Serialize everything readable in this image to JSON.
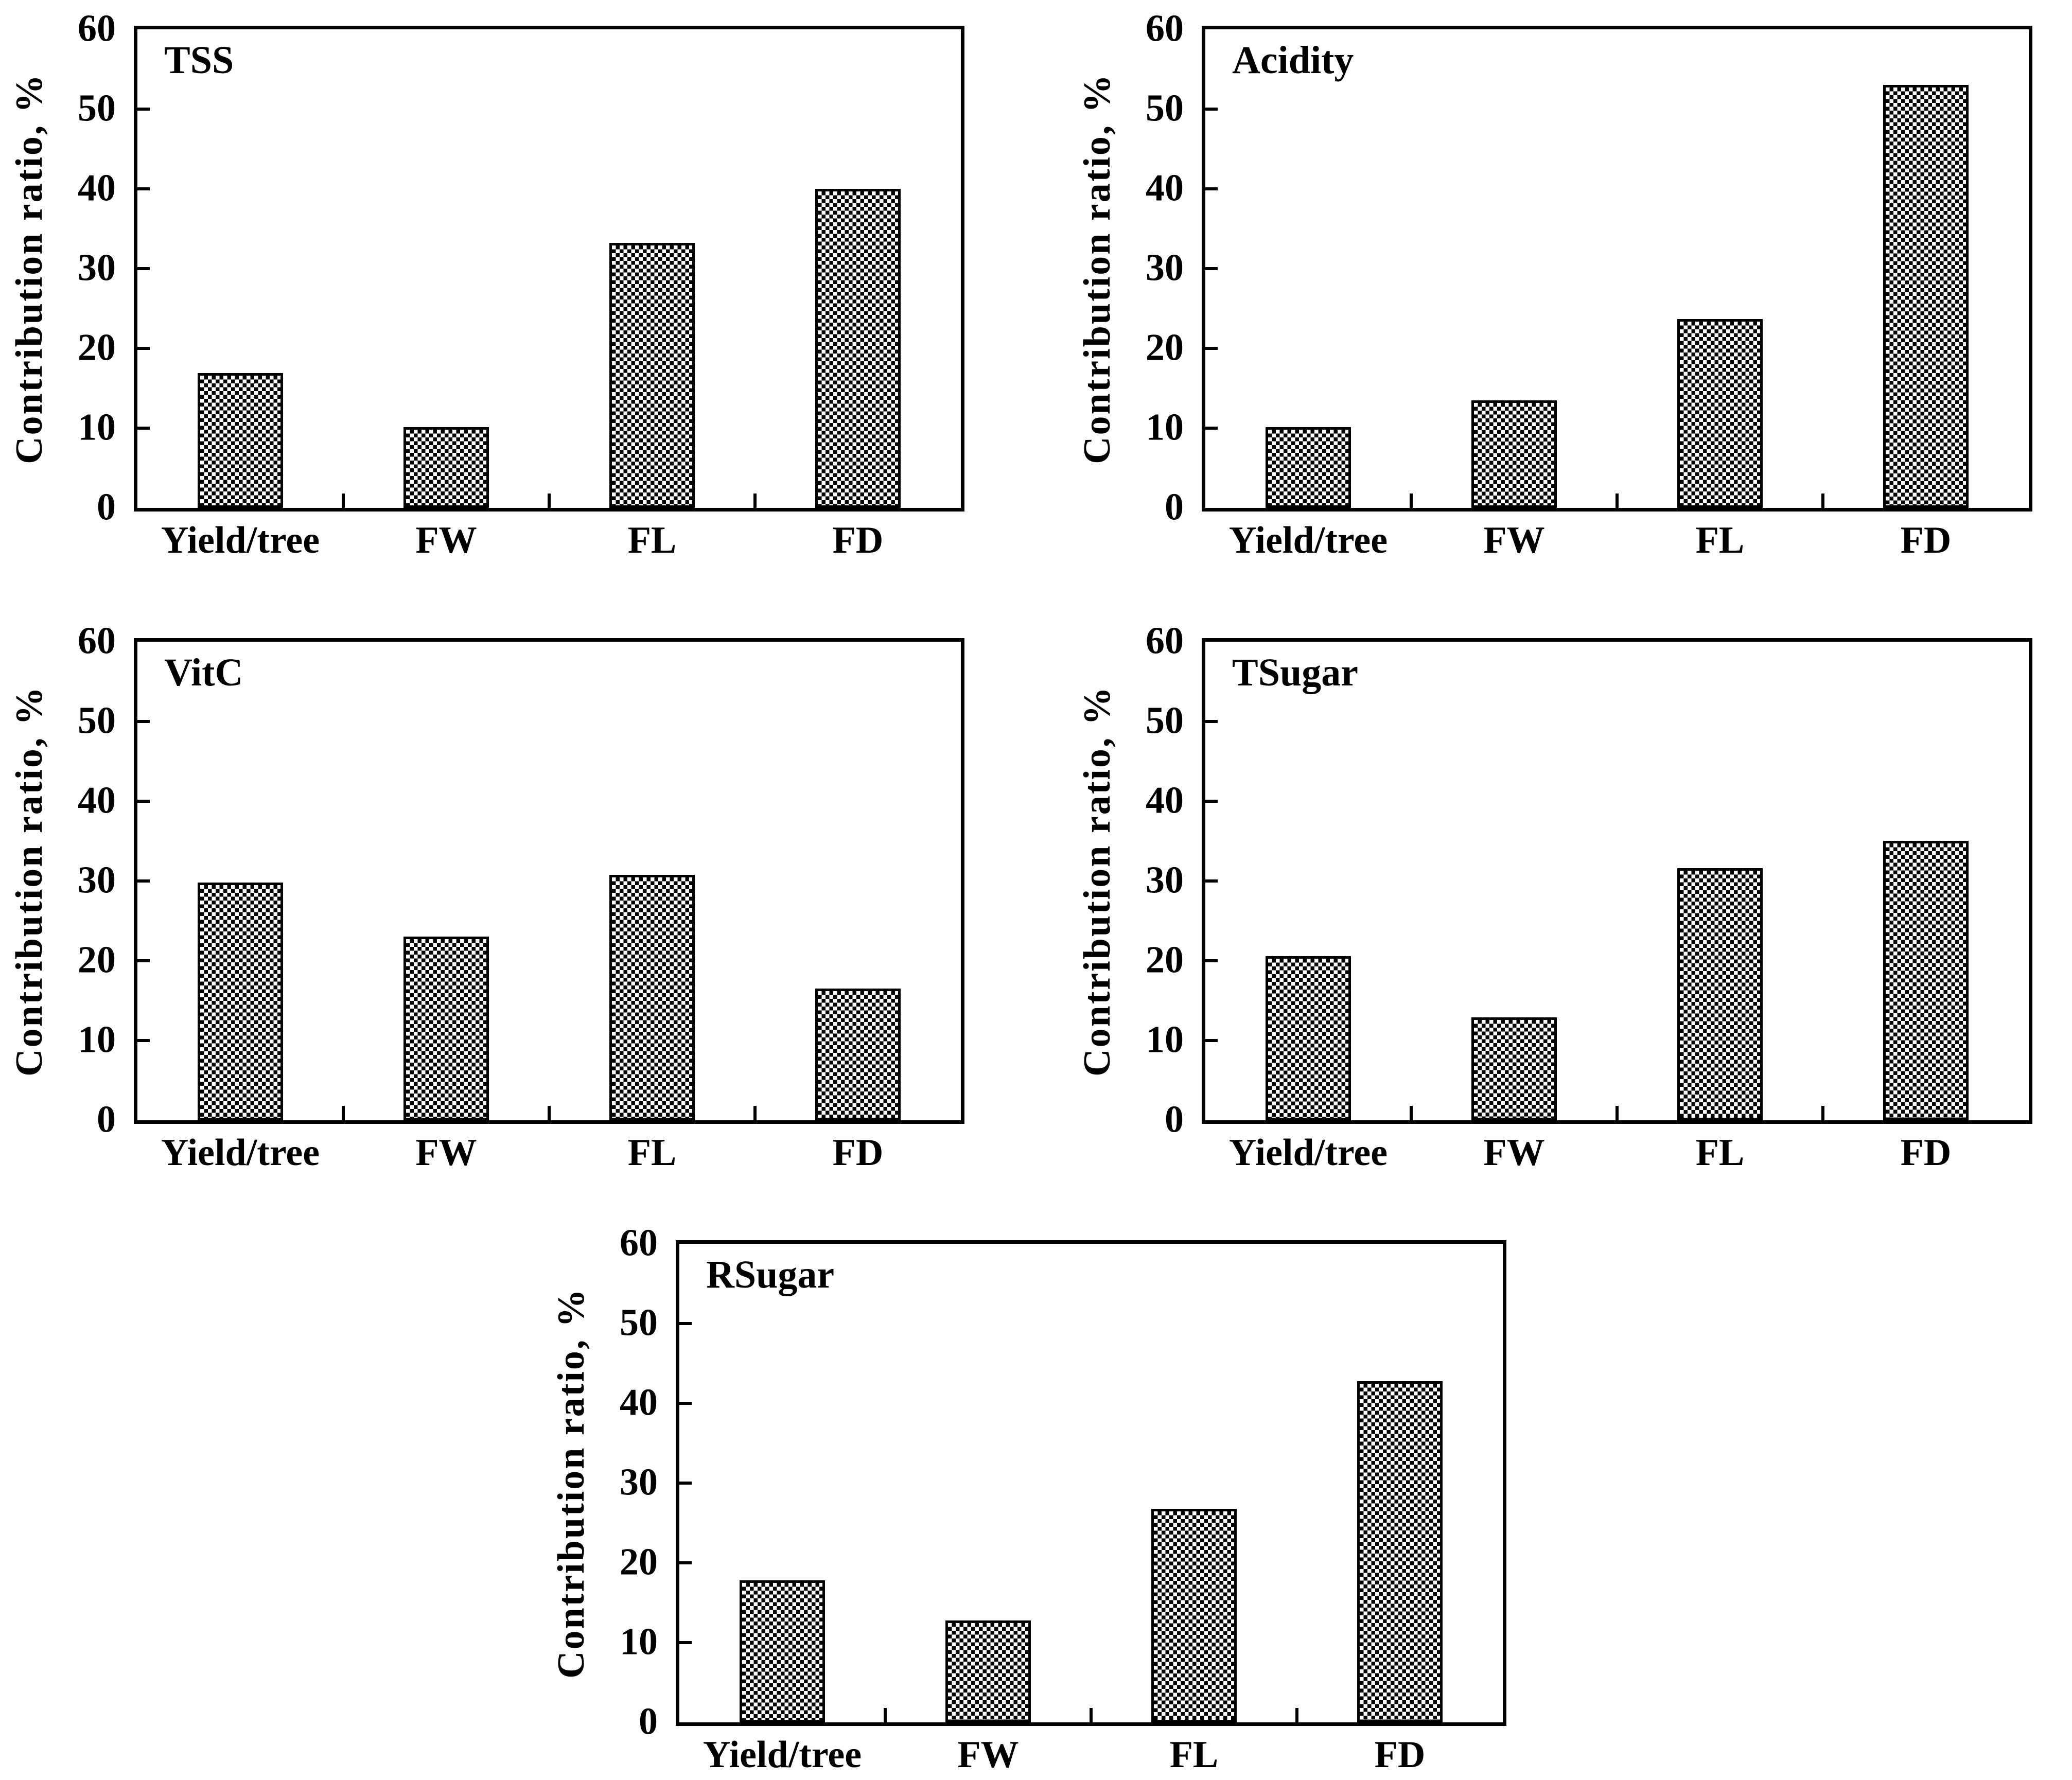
{
  "figure": {
    "background": "#ffffff",
    "ylabel": "Contribution ratio, %",
    "categories": [
      "Yield/tree",
      "FW",
      "FL",
      "FD"
    ],
    "yticks": [
      0,
      10,
      20,
      30,
      40,
      50,
      60
    ],
    "ylim": [
      0,
      60
    ]
  },
  "chart_data": [
    {
      "type": "bar",
      "title": "TSS",
      "xlabel": "",
      "ylabel": "Contribution ratio, %",
      "categories": [
        "Yield/tree",
        "FW",
        "FL",
        "FD"
      ],
      "values": [
        16.9,
        10.1,
        33.2,
        40.0
      ],
      "ylim": [
        0,
        60
      ],
      "yticks": [
        0,
        10,
        20,
        30,
        40,
        50,
        60
      ],
      "grid": false,
      "legend": "none"
    },
    {
      "type": "bar",
      "title": "Acidity",
      "xlabel": "",
      "ylabel": "Contribution ratio, %",
      "categories": [
        "Yield/tree",
        "FW",
        "FL",
        "FD"
      ],
      "values": [
        10.1,
        13.5,
        23.7,
        53.0
      ],
      "ylim": [
        0,
        60
      ],
      "yticks": [
        0,
        10,
        20,
        30,
        40,
        50,
        60
      ],
      "grid": false,
      "legend": "none"
    },
    {
      "type": "bar",
      "title": "VitC",
      "xlabel": "",
      "ylabel": "Contribution ratio, %",
      "categories": [
        "Yield/tree",
        "FW",
        "FL",
        "FD"
      ],
      "values": [
        29.8,
        23.0,
        30.8,
        16.5
      ],
      "ylim": [
        0,
        60
      ],
      "yticks": [
        0,
        10,
        20,
        30,
        40,
        50,
        60
      ],
      "grid": false,
      "legend": "none"
    },
    {
      "type": "bar",
      "title": "TSugar",
      "xlabel": "",
      "ylabel": "Contribution ratio, %",
      "categories": [
        "Yield/tree",
        "FW",
        "FL",
        "FD"
      ],
      "values": [
        20.6,
        12.9,
        31.6,
        35.0
      ],
      "ylim": [
        0,
        60
      ],
      "yticks": [
        0,
        10,
        20,
        30,
        40,
        50,
        60
      ],
      "grid": false,
      "legend": "none"
    },
    {
      "type": "bar",
      "title": "RSugar",
      "xlabel": "",
      "ylabel": "Contribution ratio, %",
      "categories": [
        "Yield/tree",
        "FW",
        "FL",
        "FD"
      ],
      "values": [
        17.8,
        12.8,
        26.8,
        42.8
      ],
      "ylim": [
        0,
        60
      ],
      "yticks": [
        0,
        10,
        20,
        30,
        40,
        50,
        60
      ],
      "grid": false,
      "legend": "none"
    }
  ],
  "colors": {
    "axis": "#000000",
    "text": "#000000",
    "bar_pattern_fg": "#000000",
    "bar_pattern_bg": "#ffffff",
    "background": "#ffffff"
  }
}
